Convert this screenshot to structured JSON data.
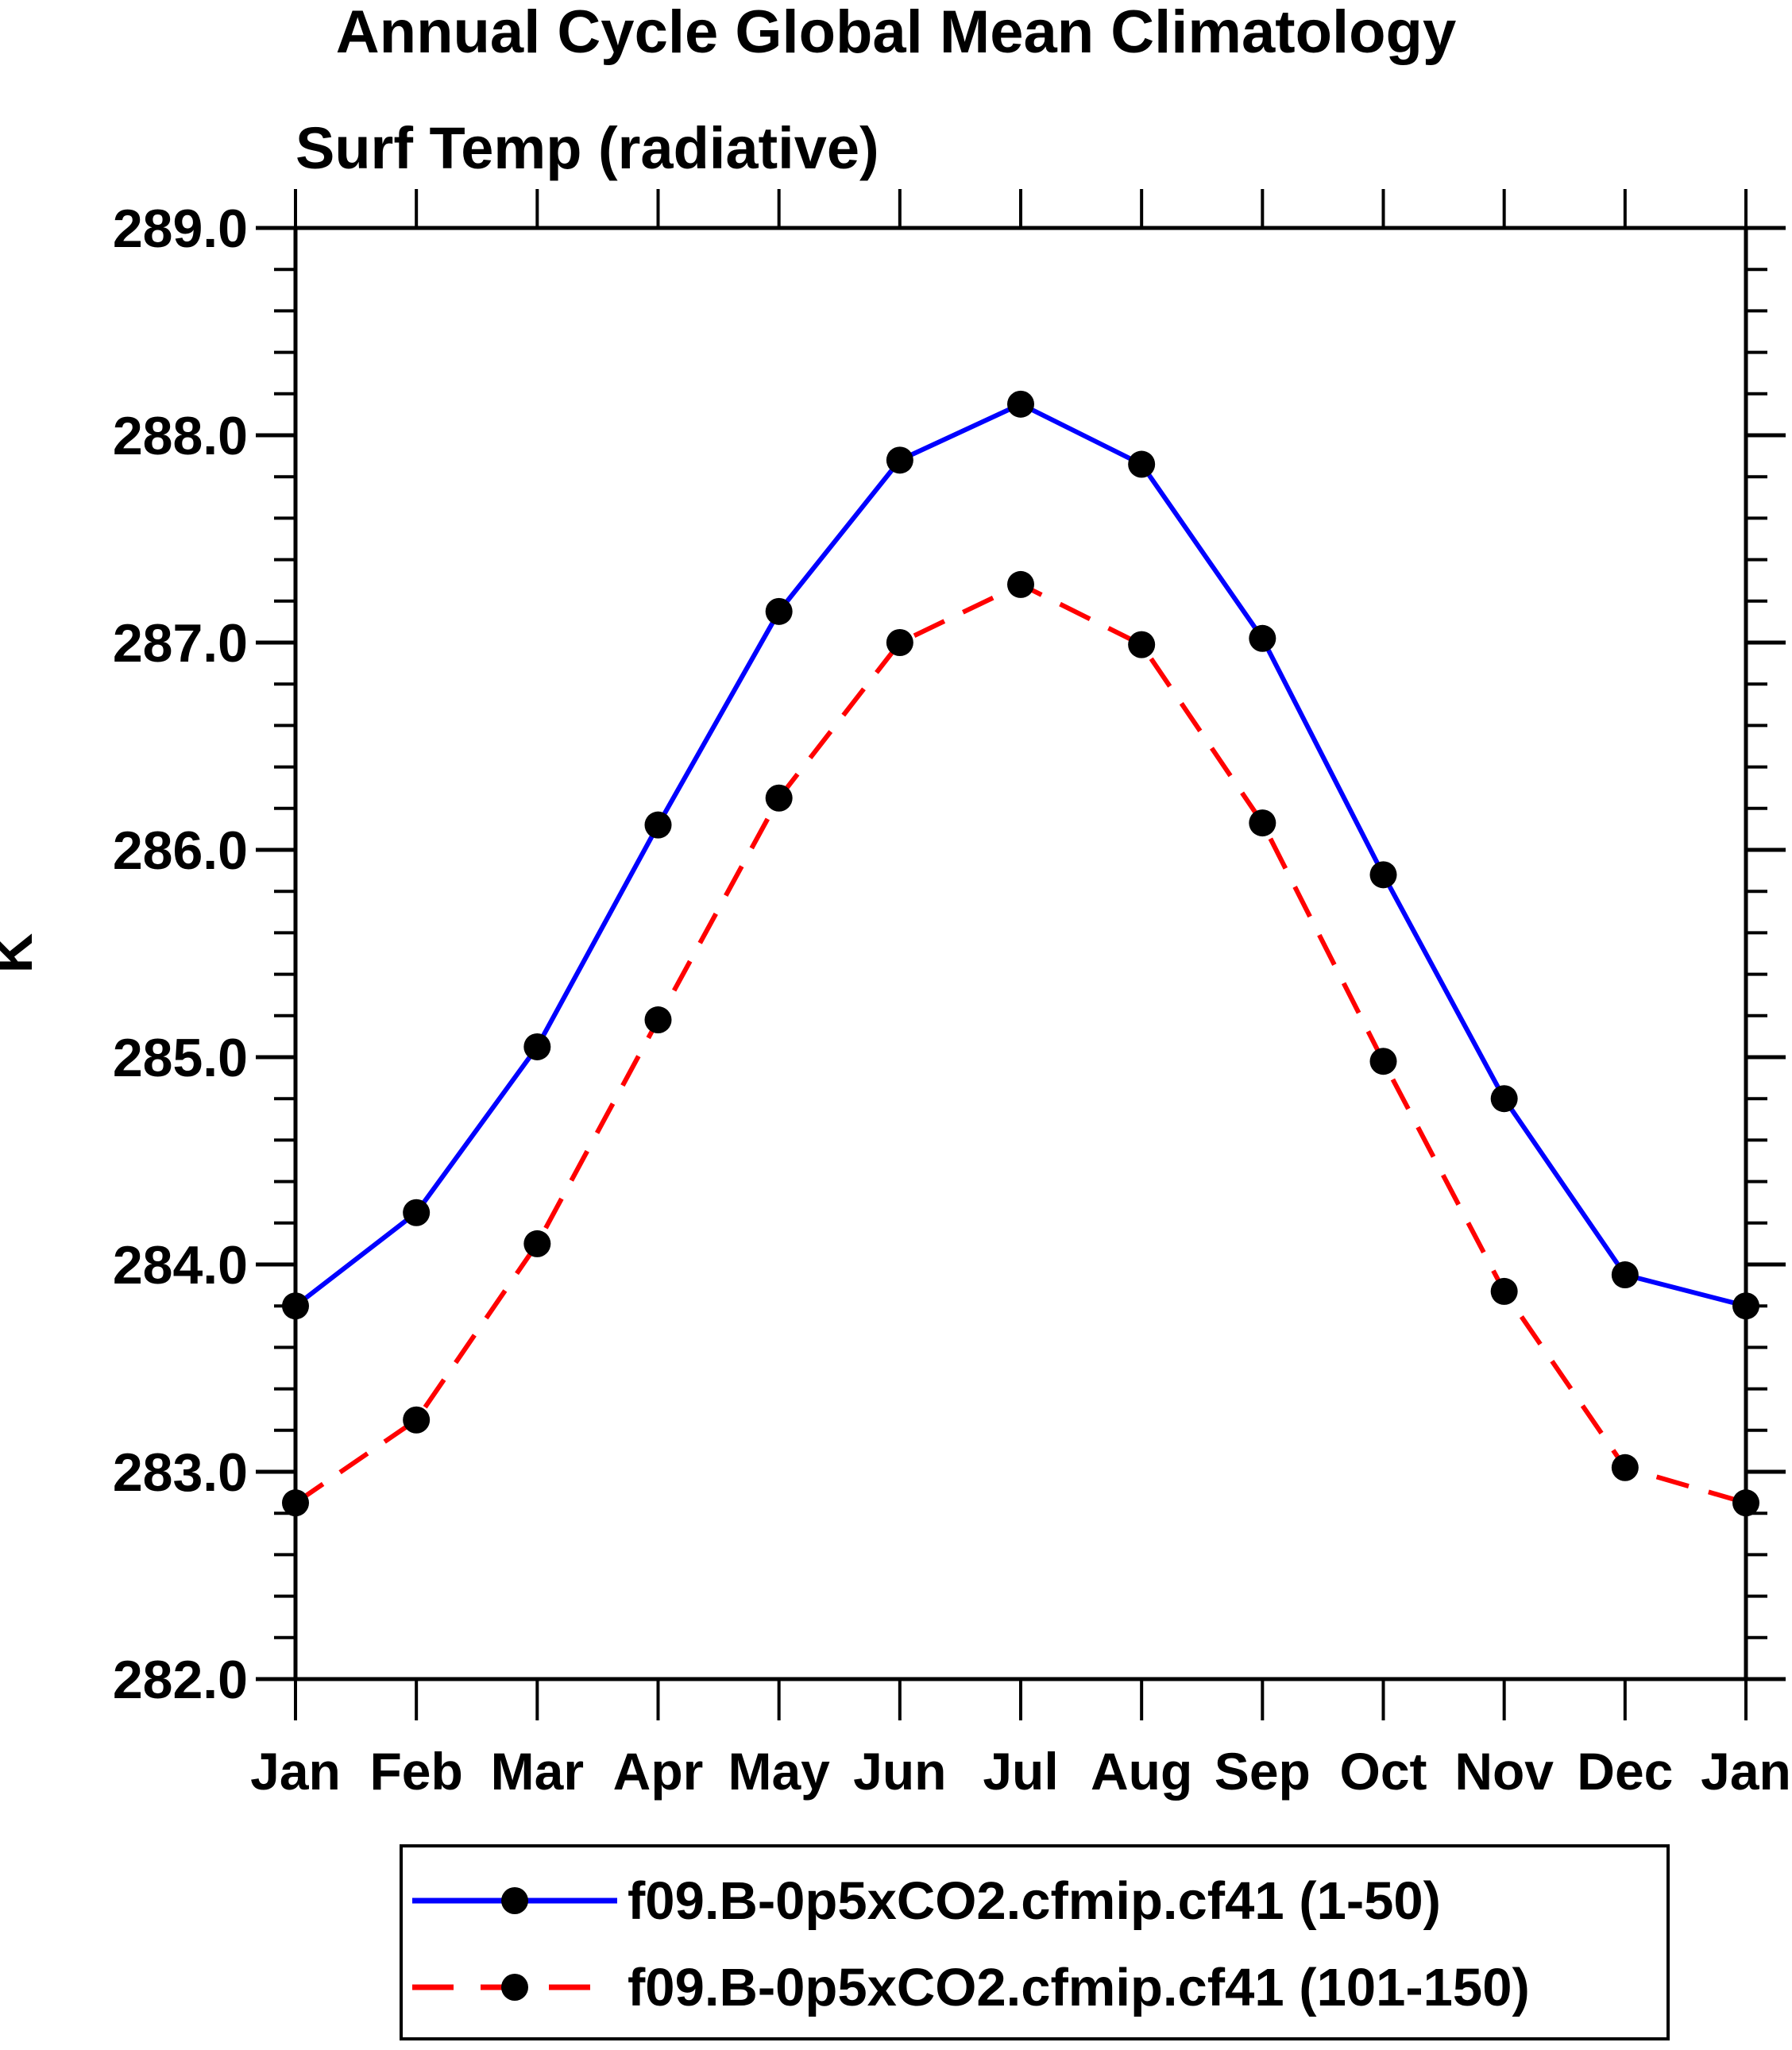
{
  "title": "Annual Cycle Global Mean Climatology",
  "subtitle": "Surf Temp (radiative)",
  "y_axis_label": "K",
  "colors": {
    "background": "#ffffff",
    "axis": "#000000",
    "marker": "#000000",
    "series1": "#0000ff",
    "series2": "#ff0000"
  },
  "chart_data": {
    "type": "line",
    "title": "Annual Cycle Global Mean Climatology",
    "subtitle": "Surf Temp (radiative)",
    "xlabel": "",
    "ylabel": "K",
    "categories": [
      "Jan",
      "Feb",
      "Mar",
      "Apr",
      "May",
      "Jun",
      "Jul",
      "Aug",
      "Sep",
      "Oct",
      "Nov",
      "Dec",
      "Jan"
    ],
    "ylim": [
      282.0,
      289.0
    ],
    "ytick_major_step": 1.0,
    "ytick_minor_step": 0.2,
    "ytick_labels": [
      "282.0",
      "283.0",
      "284.0",
      "285.0",
      "286.0",
      "287.0",
      "288.0",
      "289.0"
    ],
    "grid": false,
    "legend_position": "bottom",
    "series": [
      {
        "name": "f09.B-0p5xCO2.cfmip.cf41 (1-50)",
        "color": "#0000ff",
        "line_style": "solid",
        "marker": "filled-circle",
        "marker_color": "#000000",
        "values": [
          283.8,
          284.25,
          285.05,
          286.12,
          287.15,
          287.88,
          288.15,
          287.86,
          287.02,
          285.88,
          284.8,
          283.95,
          283.8
        ]
      },
      {
        "name": "f09.B-0p5xCO2.cfmip.cf41 (101-150)",
        "color": "#ff0000",
        "line_style": "dashed",
        "marker": "filled-circle",
        "marker_color": "#000000",
        "values": [
          282.85,
          283.25,
          284.1,
          285.18,
          286.25,
          287.0,
          287.28,
          286.99,
          286.13,
          284.98,
          283.87,
          283.02,
          282.85
        ]
      }
    ]
  }
}
